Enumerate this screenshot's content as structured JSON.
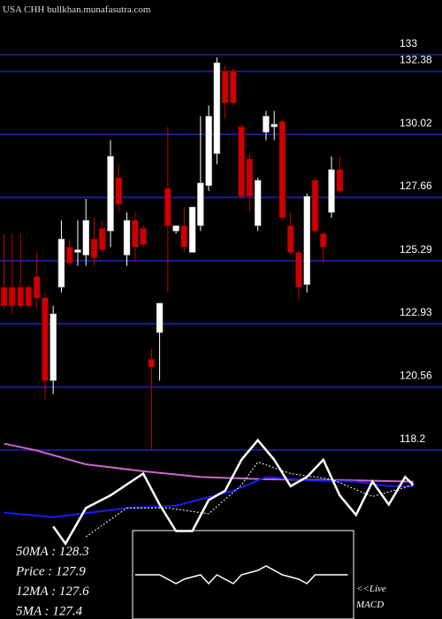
{
  "chart_data": [
    {
      "type": "candlestick",
      "title": "USA CHH bullkhan.munafasutra.com",
      "xlim": [
        -0.5,
        53.5
      ],
      "ylim": [
        118.2,
        135.05
      ],
      "yticks": [
        133,
        132.38,
        130.02,
        127.66,
        125.29,
        122.93,
        120.56,
        118.2
      ],
      "grid": true,
      "grid_color": "#1c1c8a",
      "up_color": "#ffffff",
      "down_color": "#cc0000",
      "ohlc": [
        [
          124.3,
          126.3,
          123.5,
          123.6
        ],
        [
          124.3,
          126.3,
          123.3,
          123.6
        ],
        [
          124.3,
          126.3,
          123.5,
          123.6
        ],
        [
          124.3,
          124.4,
          123.5,
          123.6
        ],
        [
          124.7,
          125.6,
          123.5,
          123.9
        ],
        [
          123.9,
          124.1,
          120.1,
          120.8
        ],
        [
          120.8,
          123.6,
          120.3,
          123.3
        ],
        [
          124.3,
          126.8,
          124.1,
          126.1
        ],
        [
          125.8,
          126.1,
          125.1,
          125.2
        ],
        [
          125.6,
          126.8,
          125.1,
          125.7
        ],
        [
          125.5,
          127.6,
          125.1,
          126.8
        ],
        [
          126.1,
          126.9,
          125.1,
          125.4
        ],
        [
          126.5,
          126.8,
          125.6,
          125.7
        ],
        [
          126.4,
          129.8,
          125.8,
          129.2
        ],
        [
          128.4,
          128.9,
          127.1,
          127.4
        ],
        [
          125.5,
          127.1,
          125.1,
          126.8
        ],
        [
          126.8,
          127.1,
          125.3,
          125.8
        ],
        [
          126.5,
          126.6,
          125.8,
          125.9
        ],
        [
          121.6,
          122.0,
          118.2,
          121.3
        ],
        [
          122.6,
          123.7,
          120.8,
          123.7
        ],
        [
          128.0,
          130.3,
          124.1,
          126.6
        ],
        [
          126.4,
          126.6,
          126.3,
          126.6
        ],
        [
          126.6,
          127.3,
          125.6,
          125.8
        ],
        [
          125.6,
          127.3,
          125.6,
          127.3
        ],
        [
          126.6,
          130.7,
          126.4,
          128.2
        ],
        [
          128.1,
          131.1,
          127.9,
          130.7
        ],
        [
          129.3,
          132.9,
          128.9,
          132.7
        ],
        [
          132.4,
          132.6,
          130.6,
          131.2
        ],
        [
          132.4,
          132.5,
          131.1,
          131.2
        ],
        [
          130.3,
          130.4,
          127.6,
          127.7
        ],
        [
          129.1,
          129.3,
          127.1,
          127.7
        ],
        [
          126.6,
          128.4,
          126.4,
          128.3
        ],
        [
          130.1,
          130.9,
          129.8,
          130.7
        ],
        [
          130.3,
          130.9,
          129.8,
          130.4
        ],
        [
          130.5,
          130.6,
          126.8,
          126.9
        ],
        [
          126.6,
          127.1,
          125.5,
          125.6
        ],
        [
          125.6,
          125.7,
          123.8,
          124.3
        ],
        [
          124.4,
          127.8,
          124.1,
          127.7
        ],
        [
          128.3,
          128.4,
          126.3,
          126.4
        ],
        [
          126.3,
          126.4,
          125.2,
          125.8
        ],
        [
          127.1,
          129.2,
          126.9,
          128.7
        ],
        [
          128.7,
          129.2,
          127.8,
          127.9
        ]
      ],
      "stats": [
        "50MA : 128.3",
        "Price : 127.9",
        "12MA : 127.6",
        "5MA : 127.4"
      ]
    },
    {
      "type": "line",
      "xlim": [
        -0.5,
        53.5
      ],
      "ylim": [
        0,
        100
      ],
      "series": [
        {
          "color": "#cc66cc",
          "x": [
            0,
            4,
            10,
            17,
            24,
            32,
            43,
            50
          ],
          "values": [
            91,
            85,
            73,
            67,
            62,
            60,
            59,
            58
          ]
        },
        {
          "color": "#1a1aff",
          "x": [
            0,
            6,
            15,
            21,
            28,
            32,
            37,
            43,
            47,
            50
          ],
          "values": [
            31,
            27,
            35,
            37,
            50,
            62,
            59,
            58,
            54,
            54
          ]
        },
        {
          "color": "#ffffff",
          "dash": true,
          "x": [
            10,
            15,
            20,
            25,
            29,
            31,
            35,
            40,
            45,
            50
          ],
          "values": [
            10,
            35,
            35,
            30,
            55,
            75,
            65,
            60,
            45,
            55
          ]
        },
        {
          "color": "#ffffff",
          "x": [
            6,
            7.5,
            10,
            13,
            17,
            19,
            21,
            23,
            25,
            27,
            29,
            31,
            33,
            35,
            37,
            39,
            41,
            43,
            45,
            47,
            49,
            50
          ],
          "values": [
            19,
            4,
            35,
            46,
            65,
            38,
            15,
            15,
            42,
            50,
            77,
            94,
            77,
            54,
            62,
            77,
            46,
            29,
            58,
            38,
            62,
            55
          ]
        }
      ]
    },
    {
      "type": "macd",
      "xlim": [
        -0.5,
        53.5
      ],
      "ylim": [
        -10,
        10
      ],
      "color": "#ffffff",
      "x": [
        16,
        19,
        21,
        22,
        24,
        25,
        26,
        28,
        29,
        31,
        32,
        34,
        36,
        37,
        38,
        40,
        42
      ],
      "values": [
        0,
        0,
        -2,
        -1,
        0,
        -2,
        0,
        -2,
        0,
        1,
        2,
        0,
        -1,
        -2,
        0,
        0,
        0
      ],
      "labels": [
        "<<Live",
        "MACD"
      ]
    }
  ]
}
